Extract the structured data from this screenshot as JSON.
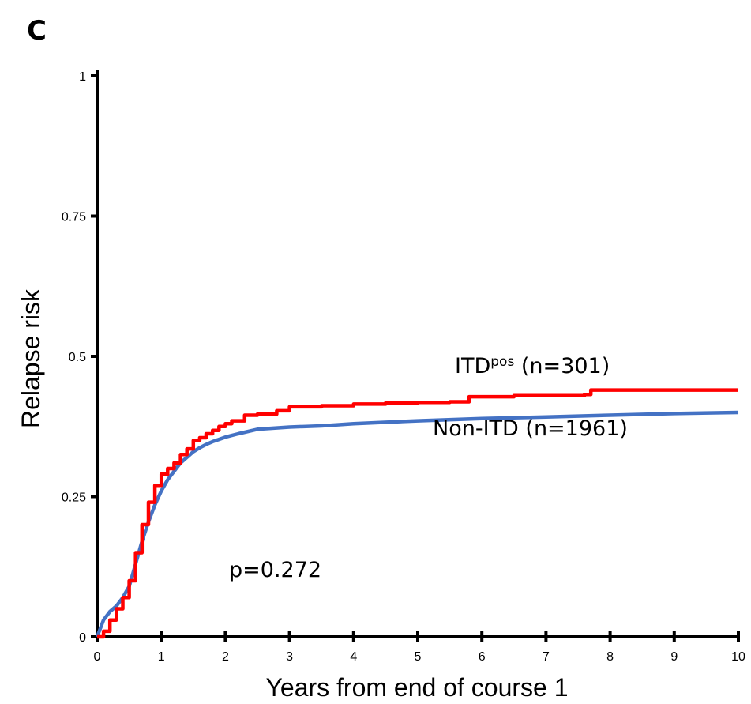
{
  "panel_label": "C",
  "chart_data": {
    "type": "line",
    "title": "",
    "xlabel": "Years from end of course 1",
    "ylabel": "Relapse risk",
    "xlim": [
      0,
      10
    ],
    "ylim": [
      0,
      1
    ],
    "x_ticks": [
      0,
      1,
      2,
      3,
      4,
      5,
      6,
      7,
      8,
      9,
      10
    ],
    "y_ticks": [
      0,
      0.25,
      0.5,
      0.75,
      1
    ],
    "y_tick_labels": [
      "0",
      "0.25",
      "0.5",
      "0.75",
      "1"
    ],
    "grid": false,
    "series": [
      {
        "name_prefix": "ITD",
        "name_superscript": "pos",
        "name_suffix": " (n=301)",
        "color": "#ff0000",
        "step": true,
        "points": [
          [
            0,
            0
          ],
          [
            0.1,
            0.01
          ],
          [
            0.2,
            0.03
          ],
          [
            0.3,
            0.05
          ],
          [
            0.4,
            0.07
          ],
          [
            0.5,
            0.1
          ],
          [
            0.6,
            0.15
          ],
          [
            0.7,
            0.2
          ],
          [
            0.8,
            0.24
          ],
          [
            0.9,
            0.27
          ],
          [
            1.0,
            0.29
          ],
          [
            1.1,
            0.3
          ],
          [
            1.2,
            0.31
          ],
          [
            1.3,
            0.325
          ],
          [
            1.4,
            0.335
          ],
          [
            1.5,
            0.35
          ],
          [
            1.6,
            0.355
          ],
          [
            1.7,
            0.362
          ],
          [
            1.8,
            0.368
          ],
          [
            1.9,
            0.375
          ],
          [
            2.0,
            0.38
          ],
          [
            2.1,
            0.385
          ],
          [
            2.3,
            0.395
          ],
          [
            2.5,
            0.397
          ],
          [
            2.8,
            0.403
          ],
          [
            3.0,
            0.41
          ],
          [
            3.5,
            0.412
          ],
          [
            4.0,
            0.415
          ],
          [
            4.5,
            0.417
          ],
          [
            5.0,
            0.418
          ],
          [
            5.5,
            0.419
          ],
          [
            5.8,
            0.428
          ],
          [
            6.5,
            0.43
          ],
          [
            7.6,
            0.432
          ],
          [
            7.7,
            0.44
          ],
          [
            10,
            0.44
          ]
        ]
      },
      {
        "name_prefix": "Non-ITD",
        "name_superscript": "",
        "name_suffix": " (n=1961)",
        "color": "#4472c4",
        "step": false,
        "points": [
          [
            0,
            0
          ],
          [
            0.1,
            0.03
          ],
          [
            0.2,
            0.045
          ],
          [
            0.3,
            0.055
          ],
          [
            0.4,
            0.07
          ],
          [
            0.5,
            0.09
          ],
          [
            0.6,
            0.13
          ],
          [
            0.7,
            0.17
          ],
          [
            0.8,
            0.205
          ],
          [
            0.9,
            0.235
          ],
          [
            1.0,
            0.26
          ],
          [
            1.1,
            0.28
          ],
          [
            1.2,
            0.295
          ],
          [
            1.3,
            0.31
          ],
          [
            1.4,
            0.32
          ],
          [
            1.5,
            0.33
          ],
          [
            1.6,
            0.337
          ],
          [
            1.7,
            0.343
          ],
          [
            1.8,
            0.348
          ],
          [
            1.9,
            0.352
          ],
          [
            2.0,
            0.356
          ],
          [
            2.2,
            0.362
          ],
          [
            2.5,
            0.37
          ],
          [
            3.0,
            0.374
          ],
          [
            3.5,
            0.376
          ],
          [
            4.0,
            0.38
          ],
          [
            5.0,
            0.385
          ],
          [
            6.0,
            0.389
          ],
          [
            7.0,
            0.392
          ],
          [
            8.0,
            0.395
          ],
          [
            9.0,
            0.398
          ],
          [
            10,
            0.4
          ]
        ]
      }
    ],
    "annotations": {
      "p_value": "p=0.272"
    }
  }
}
